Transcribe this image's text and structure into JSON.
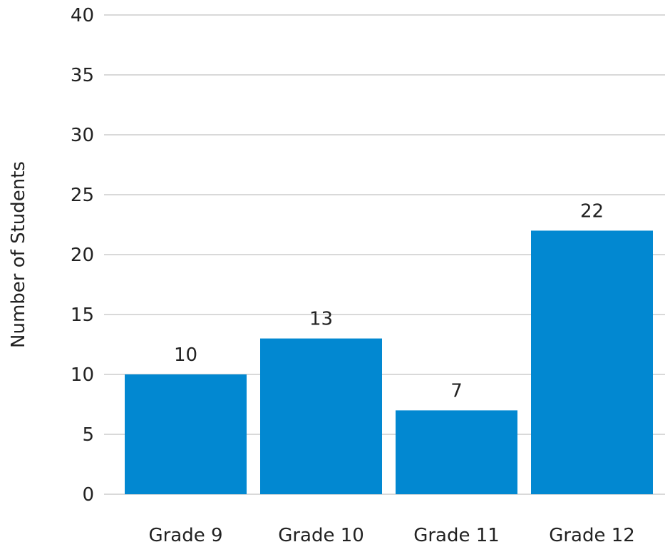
{
  "chart_data": {
    "type": "bar",
    "categories": [
      "Grade 9",
      "Grade 10",
      "Grade 11",
      "Grade 12"
    ],
    "values": [
      10,
      13,
      7,
      22
    ],
    "data_labels": [
      "10",
      "13",
      "7",
      "22"
    ],
    "title": "",
    "xlabel": "",
    "ylabel": "Number of Students",
    "ylim": [
      0,
      40
    ],
    "yticks": [
      "0",
      "5",
      "10",
      "15",
      "20",
      "25",
      "30",
      "35",
      "40"
    ],
    "grid": true,
    "legend": "none",
    "bar_color": "#0288d1",
    "grid_color": "#d9d9d9"
  }
}
